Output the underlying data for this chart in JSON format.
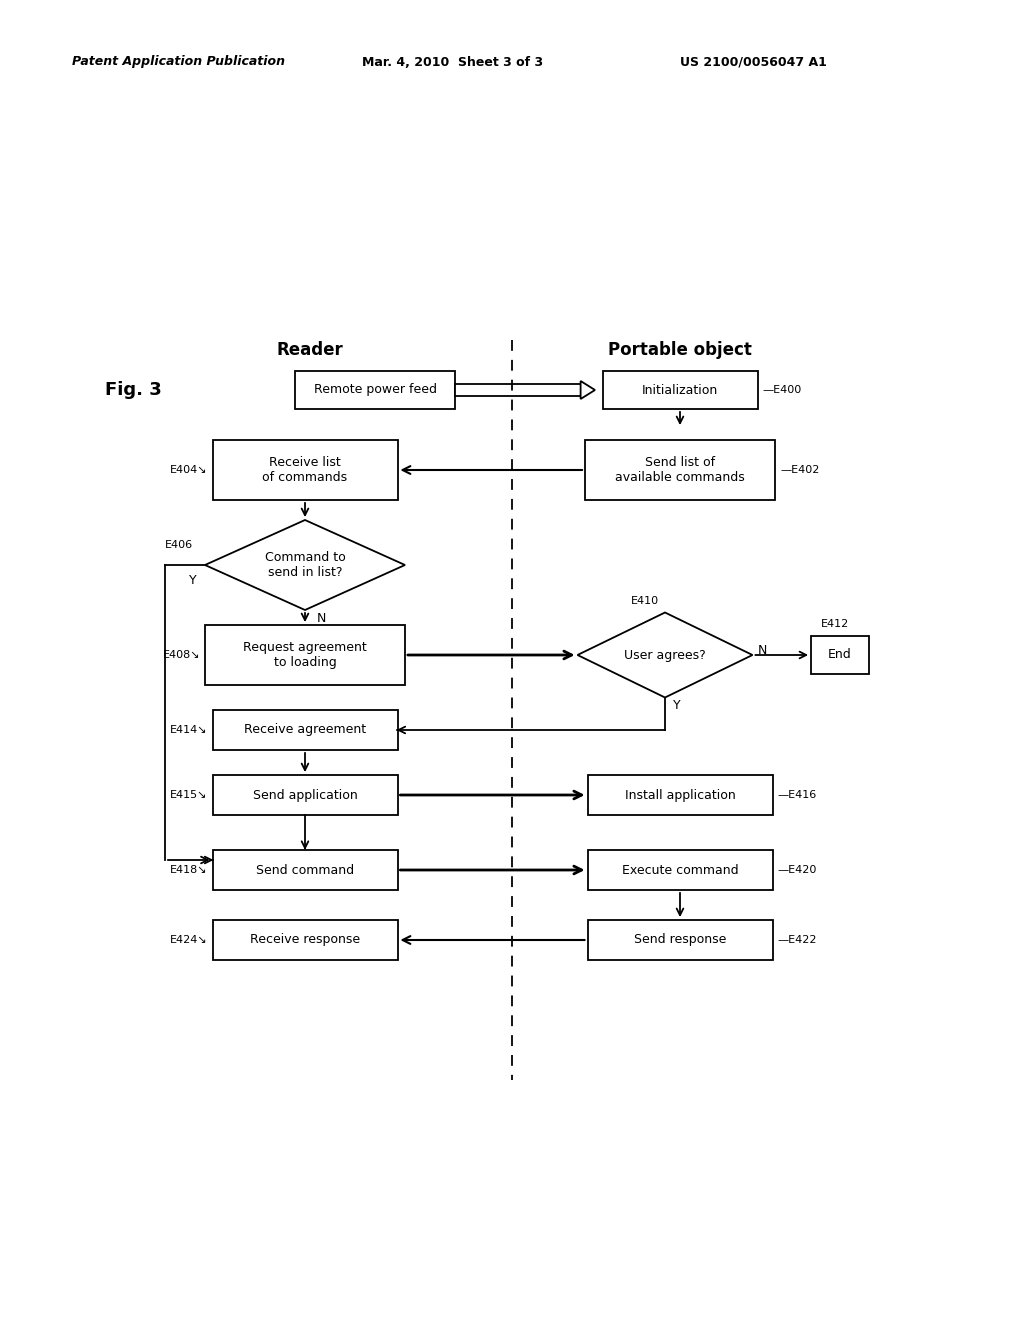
{
  "bg_color": "#ffffff",
  "header_left": "Patent Application Publication",
  "header_mid": "Mar. 4, 2010  Sheet 3 of 3",
  "header_right": "US 2100/0056047 A1",
  "fig_label": "Fig. 3",
  "reader_label": "Reader",
  "portable_label": "Portable object"
}
